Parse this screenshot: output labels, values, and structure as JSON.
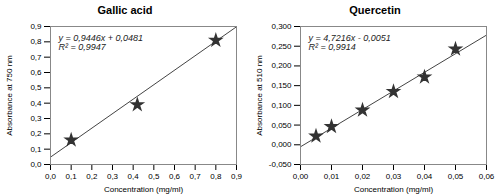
{
  "chart_data": [
    {
      "type": "scatter",
      "title": "Gallic acid",
      "x_label": "Concentration (mg/ml)",
      "y_label": "Absorbance at 750 nm",
      "series": [
        {
          "type": "line",
          "color": "#444444",
          "x": [
            0,
            0.9
          ],
          "values": [
            0.0481,
            0.89824
          ]
        },
        {
          "type": "scatter",
          "color": "#333333",
          "marker": "star",
          "x": [
            0.1,
            0.42,
            0.8
          ],
          "values": [
            0.16,
            0.39,
            0.81
          ]
        }
      ],
      "annotations": [
        "y = 0,9446x + 0,0481",
        "R² = 0,9947"
      ],
      "xlim": [
        0,
        0.9
      ],
      "ylim": [
        0,
        0.9
      ],
      "xticks": [
        {
          "value": 0,
          "label": "0,0"
        },
        {
          "value": 0.1,
          "label": "0,1"
        },
        {
          "value": 0.2,
          "label": "0,2"
        },
        {
          "value": 0.3,
          "label": "0,3"
        },
        {
          "value": 0.4,
          "label": "0,4"
        },
        {
          "value": 0.5,
          "label": "0,5"
        },
        {
          "value": 0.6,
          "label": "0,6"
        },
        {
          "value": 0.7,
          "label": "0,7"
        },
        {
          "value": 0.8,
          "label": "0,8"
        },
        {
          "value": 0.9,
          "label": "0,9"
        }
      ],
      "yticks": [
        {
          "value": 0,
          "label": "0,0"
        },
        {
          "value": 0.1,
          "label": "0,1"
        },
        {
          "value": 0.2,
          "label": "0,2"
        },
        {
          "value": 0.3,
          "label": "0,3"
        },
        {
          "value": 0.4,
          "label": "0,4"
        },
        {
          "value": 0.5,
          "label": "0,5"
        },
        {
          "value": 0.6,
          "label": "0,6"
        },
        {
          "value": 0.7,
          "label": "0,7"
        },
        {
          "value": 0.8,
          "label": "0,8"
        },
        {
          "value": 0.9,
          "label": "0,9"
        }
      ],
      "grid": false
    },
    {
      "type": "scatter",
      "title": "Quercetin",
      "x_label": "Concentration (mg/ml)",
      "y_label": "Absorbance at 510 nm",
      "series": [
        {
          "type": "line",
          "color": "#444444",
          "x": [
            0,
            0.06
          ],
          "values": [
            -0.0051,
            0.278196
          ]
        },
        {
          "type": "scatter",
          "color": "#333333",
          "marker": "star",
          "x": [
            0.005,
            0.01,
            0.02,
            0.03,
            0.04,
            0.05
          ],
          "values": [
            0.022,
            0.046,
            0.088,
            0.135,
            0.172,
            0.243
          ]
        }
      ],
      "annotations": [
        "y = 4,7216x - 0,0051",
        "R² = 0,9914"
      ],
      "xlim": [
        0,
        0.06
      ],
      "ylim": [
        -0.05,
        0.3
      ],
      "xticks": [
        {
          "value": 0,
          "label": "0,00"
        },
        {
          "value": 0.01,
          "label": "0,01"
        },
        {
          "value": 0.02,
          "label": "0,02"
        },
        {
          "value": 0.03,
          "label": "0,03"
        },
        {
          "value": 0.04,
          "label": "0,04"
        },
        {
          "value": 0.05,
          "label": "0,05"
        },
        {
          "value": 0.06,
          "label": "0,06"
        }
      ],
      "yticks": [
        {
          "value": -0.05,
          "label": "-0,050"
        },
        {
          "value": 0,
          "label": "0,000"
        },
        {
          "value": 0.05,
          "label": "0,050"
        },
        {
          "value": 0.1,
          "label": "0,100"
        },
        {
          "value": 0.15,
          "label": "0,150"
        },
        {
          "value": 0.2,
          "label": "0,200"
        },
        {
          "value": 0.25,
          "label": "0,250"
        },
        {
          "value": 0.3,
          "label": "0,300"
        }
      ],
      "grid": false
    }
  ]
}
